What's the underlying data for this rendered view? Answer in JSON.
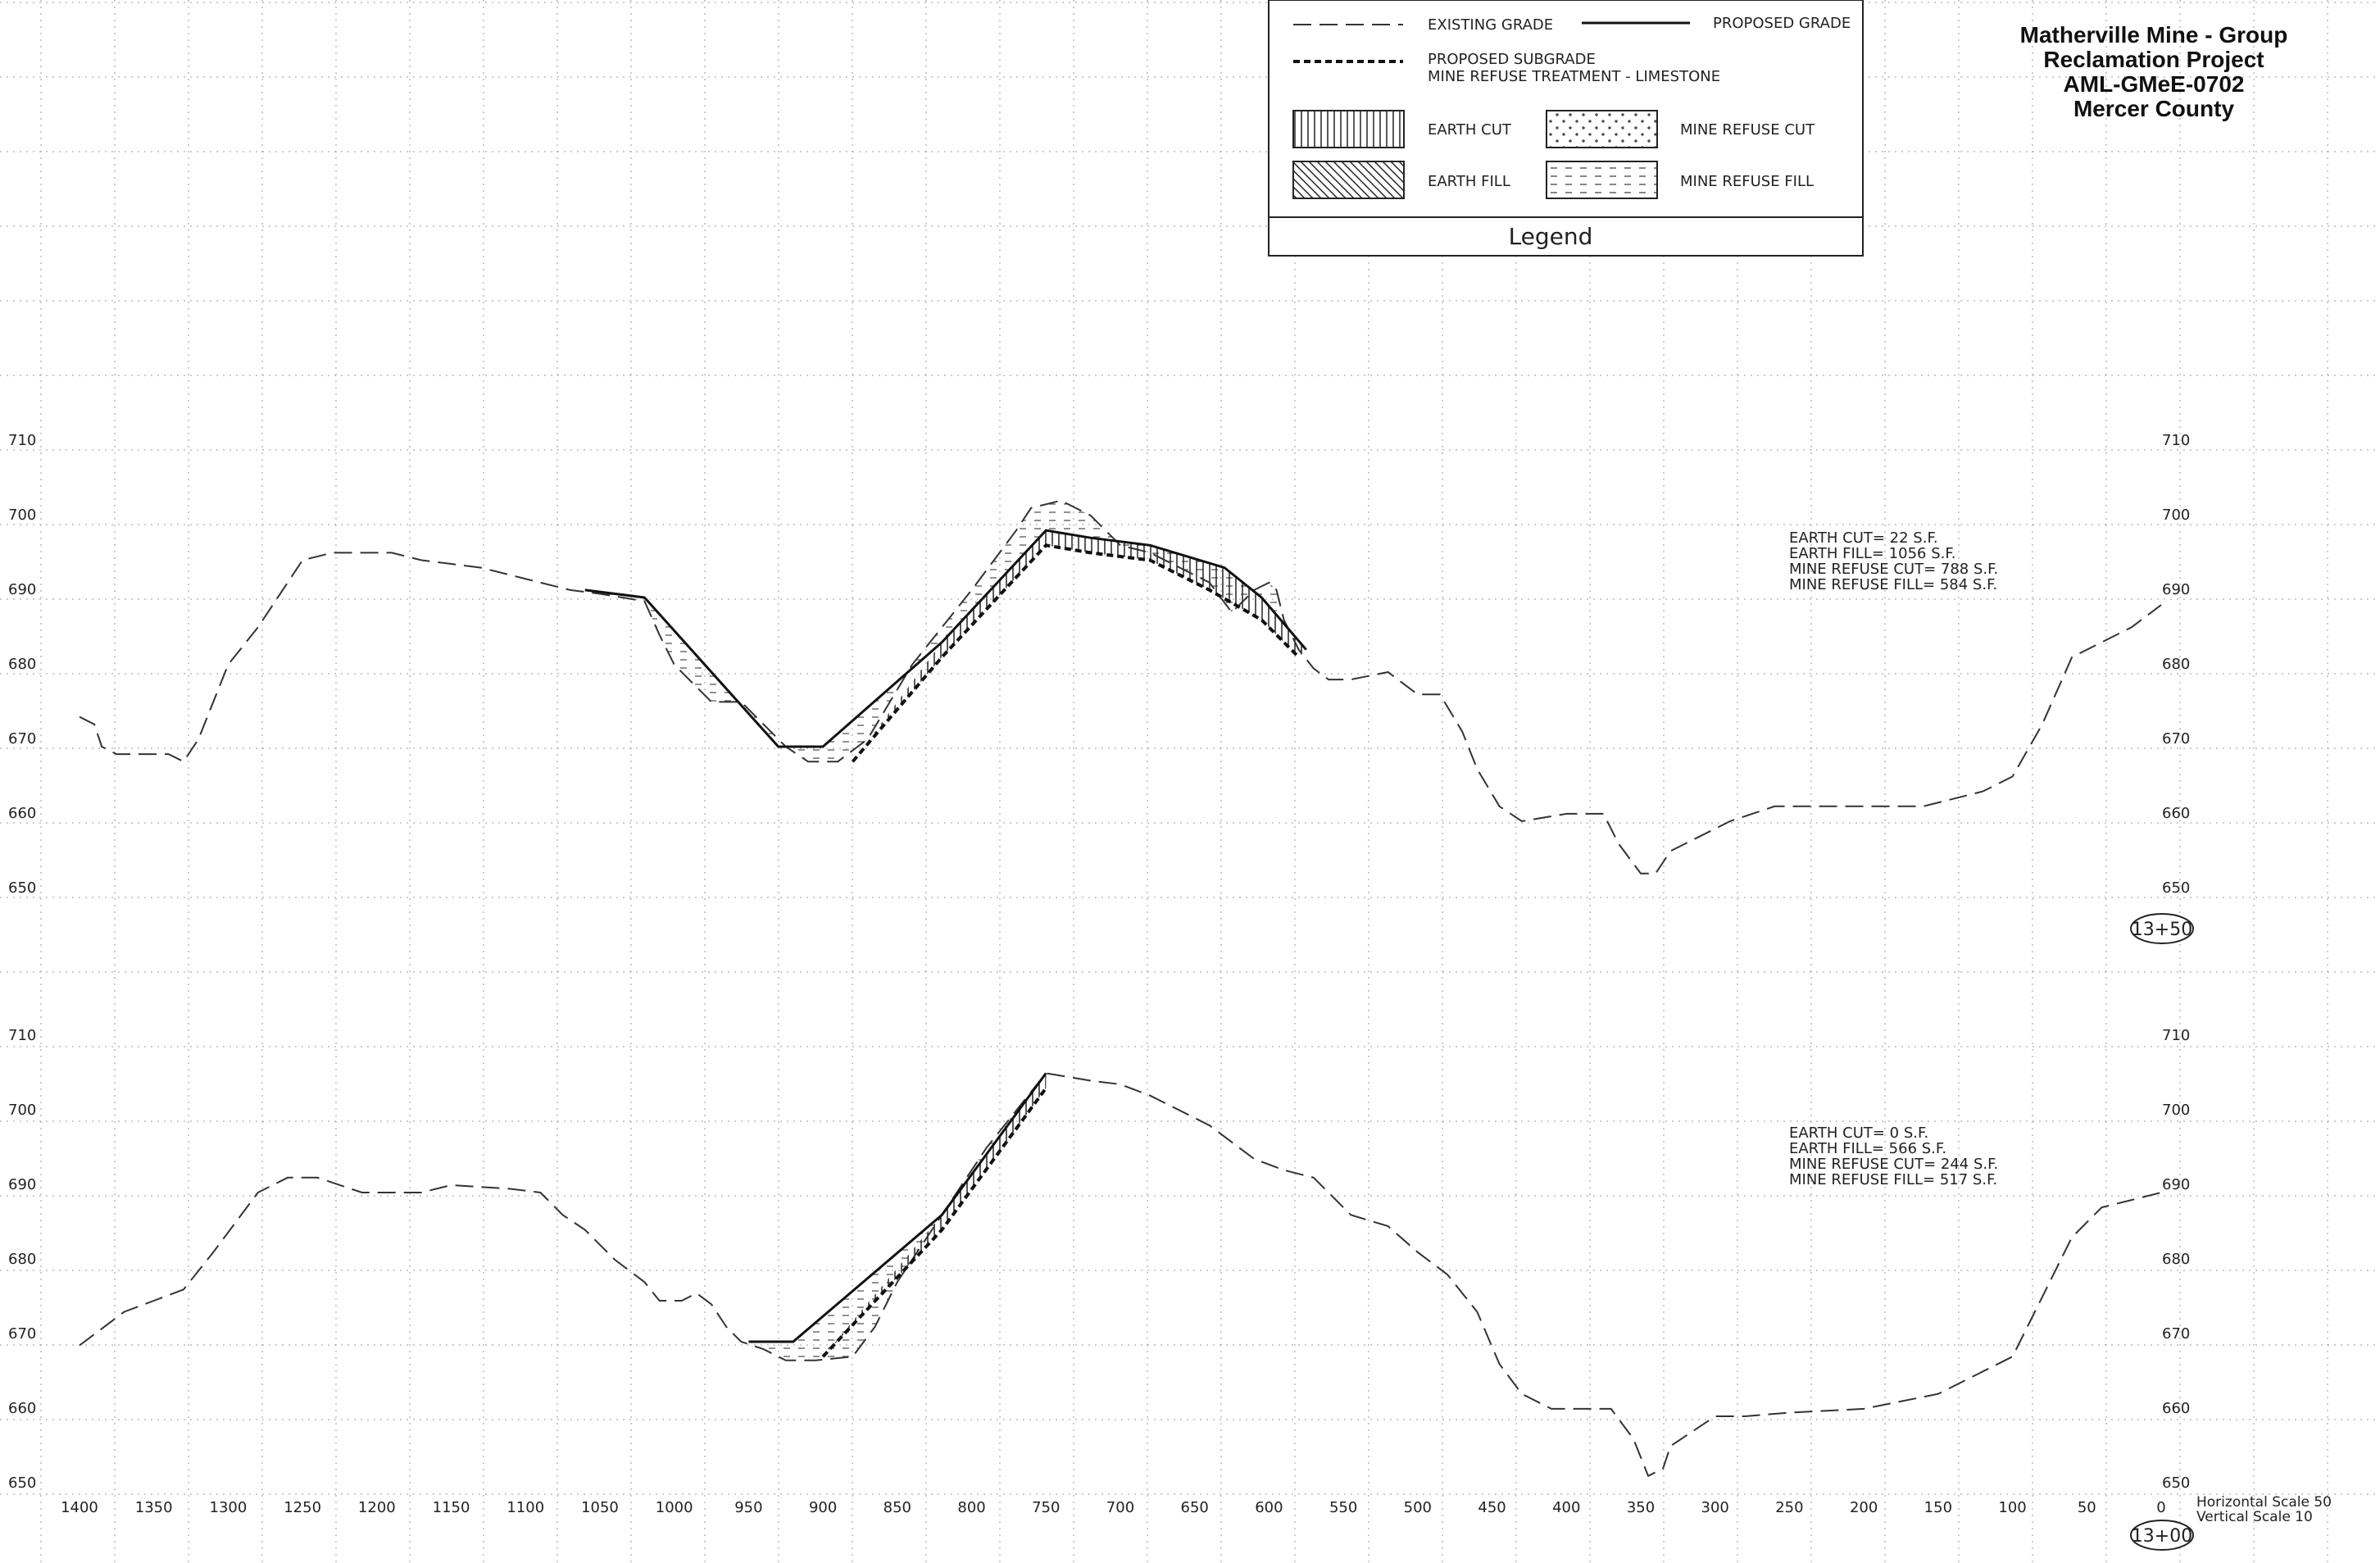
{
  "title": {
    "lines": [
      "Matherville Mine - Group",
      "Reclamation Project",
      "AML-GMeE-0702",
      "Mercer County"
    ]
  },
  "legend": {
    "heading": "Legend",
    "existing_grade": "EXISTING GRADE",
    "proposed_grade": "PROPOSED GRADE",
    "proposed_subgrade": "PROPOSED SUBGRADE",
    "mine_refuse_treatment": "MINE REFUSE TREATMENT - LIMESTONE",
    "earth_cut": "EARTH CUT",
    "mine_refuse_cut": "MINE REFUSE CUT",
    "earth_fill": "EARTH FILL",
    "mine_refuse_fill": "MINE REFUSE FILL"
  },
  "scale_note": {
    "horizontal": "Horizontal Scale 50",
    "vertical": "Vertical Scale 10"
  },
  "x_axis": {
    "ticks": [
      1400,
      1350,
      1300,
      1250,
      1200,
      1150,
      1100,
      1050,
      1000,
      950,
      900,
      850,
      800,
      750,
      700,
      650,
      600,
      550,
      500,
      450,
      400,
      350,
      300,
      250,
      200,
      150,
      100,
      50,
      0
    ],
    "range": [
      1400,
      0
    ]
  },
  "sections": [
    {
      "station": "13+50",
      "elevation_ticks": [
        710,
        700,
        690,
        680,
        670,
        660,
        650
      ],
      "quantities": [
        "EARTH CUT= 22 S.F.",
        "EARTH FILL= 1056 S.F.",
        "MINE REFUSE CUT= 788 S.F.",
        "MINE REFUSE FILL= 584 S.F."
      ],
      "existing_grade": [
        [
          1400,
          674
        ],
        [
          1390,
          673
        ],
        [
          1385,
          670
        ],
        [
          1375,
          669
        ],
        [
          1340,
          669
        ],
        [
          1330,
          668
        ],
        [
          1320,
          671
        ],
        [
          1300,
          681
        ],
        [
          1280,
          686
        ],
        [
          1250,
          695
        ],
        [
          1230,
          696
        ],
        [
          1190,
          696
        ],
        [
          1170,
          695
        ],
        [
          1150,
          694.5
        ],
        [
          1130,
          694
        ],
        [
          1110,
          693
        ],
        [
          1090,
          692
        ],
        [
          1070,
          691
        ],
        [
          1050,
          690.5
        ],
        [
          1020,
          689.5
        ],
        [
          1010,
          685
        ],
        [
          1000,
          681
        ],
        [
          985,
          678
        ],
        [
          975,
          676
        ],
        [
          955,
          676
        ],
        [
          940,
          673
        ],
        [
          925,
          670
        ],
        [
          910,
          668
        ],
        [
          890,
          668
        ],
        [
          870,
          671
        ],
        [
          855,
          676
        ],
        [
          840,
          681
        ],
        [
          820,
          686
        ],
        [
          800,
          691
        ],
        [
          785,
          695
        ],
        [
          770,
          699
        ],
        [
          760,
          702
        ],
        [
          740,
          703
        ],
        [
          720,
          701
        ],
        [
          700,
          697
        ],
        [
          680,
          696
        ],
        [
          660,
          694
        ],
        [
          640,
          692
        ],
        [
          625,
          688
        ],
        [
          610,
          691
        ],
        [
          600,
          692
        ],
        [
          595,
          691
        ],
        [
          590,
          687
        ],
        [
          580,
          683
        ],
        [
          570,
          680.5
        ],
        [
          560,
          679
        ],
        [
          545,
          679
        ],
        [
          520,
          680
        ],
        [
          500,
          677
        ],
        [
          485,
          677
        ],
        [
          470,
          672
        ],
        [
          460,
          667
        ],
        [
          445,
          662
        ],
        [
          430,
          660
        ],
        [
          400,
          661
        ],
        [
          375,
          661
        ],
        [
          365,
          657
        ],
        [
          350,
          653
        ],
        [
          340,
          653
        ],
        [
          330,
          656
        ],
        [
          310,
          658
        ],
        [
          290,
          660
        ],
        [
          260,
          662
        ],
        [
          200,
          662
        ],
        [
          160,
          662
        ],
        [
          120,
          664
        ],
        [
          100,
          666
        ],
        [
          80,
          673
        ],
        [
          60,
          682
        ],
        [
          40,
          684
        ],
        [
          20,
          686
        ],
        [
          0,
          689
        ]
      ],
      "proposed_grade": [
        [
          1060,
          691
        ],
        [
          1020,
          690
        ],
        [
          930,
          670
        ],
        [
          900,
          670
        ],
        [
          820,
          684
        ],
        [
          750,
          699
        ],
        [
          720,
          698
        ],
        [
          680,
          697
        ],
        [
          630,
          694
        ],
        [
          605,
          690
        ],
        [
          575,
          683
        ]
      ],
      "proposed_subgrade": [
        [
          880,
          668
        ],
        [
          820,
          682
        ],
        [
          750,
          697
        ],
        [
          720,
          696
        ],
        [
          680,
          695
        ],
        [
          640,
          691
        ],
        [
          605,
          687
        ],
        [
          580,
          682
        ]
      ]
    },
    {
      "station": "13+00",
      "elevation_ticks": [
        710,
        700,
        690,
        680,
        670,
        660,
        650
      ],
      "quantities": [
        "EARTH CUT= 0 S.F.",
        "EARTH FILL= 566 S.F.",
        "MINE REFUSE CUT= 244 S.F.",
        "MINE REFUSE FILL= 517 S.F."
      ],
      "existing_grade": [
        [
          1400,
          669.5
        ],
        [
          1390,
          671
        ],
        [
          1370,
          674
        ],
        [
          1350,
          675.5
        ],
        [
          1330,
          677
        ],
        [
          1310,
          682
        ],
        [
          1295,
          686
        ],
        [
          1280,
          690
        ],
        [
          1260,
          692
        ],
        [
          1240,
          692
        ],
        [
          1210,
          690
        ],
        [
          1170,
          690
        ],
        [
          1150,
          691
        ],
        [
          1110,
          690.5
        ],
        [
          1090,
          690
        ],
        [
          1075,
          687
        ],
        [
          1060,
          685
        ],
        [
          1040,
          681
        ],
        [
          1020,
          678
        ],
        [
          1010,
          675.5
        ],
        [
          995,
          675.5
        ],
        [
          985,
          676.5
        ],
        [
          975,
          675
        ],
        [
          965,
          672
        ],
        [
          955,
          670
        ],
        [
          940,
          669
        ],
        [
          925,
          667.5
        ],
        [
          905,
          667.5
        ],
        [
          880,
          668
        ],
        [
          865,
          672
        ],
        [
          850,
          678
        ],
        [
          830,
          684
        ],
        [
          810,
          690
        ],
        [
          790,
          696
        ],
        [
          770,
          701
        ],
        [
          750,
          706
        ],
        [
          720,
          705
        ],
        [
          700,
          704.5
        ],
        [
          680,
          703
        ],
        [
          660,
          701
        ],
        [
          640,
          699
        ],
        [
          620,
          696
        ],
        [
          610,
          694.5
        ],
        [
          590,
          693
        ],
        [
          570,
          692
        ],
        [
          560,
          690
        ],
        [
          545,
          687
        ],
        [
          520,
          685.5
        ],
        [
          500,
          682
        ],
        [
          480,
          679
        ],
        [
          460,
          674
        ],
        [
          445,
          667
        ],
        [
          430,
          663
        ],
        [
          410,
          661
        ],
        [
          390,
          661
        ],
        [
          370,
          661
        ],
        [
          355,
          657
        ],
        [
          345,
          652
        ],
        [
          335,
          653
        ],
        [
          330,
          656
        ],
        [
          315,
          658
        ],
        [
          300,
          660
        ],
        [
          280,
          660
        ],
        [
          250,
          660.5
        ],
        [
          200,
          661
        ],
        [
          150,
          663
        ],
        [
          120,
          666
        ],
        [
          100,
          668
        ],
        [
          80,
          676
        ],
        [
          60,
          684
        ],
        [
          40,
          688
        ],
        [
          20,
          689
        ],
        [
          0,
          690
        ]
      ],
      "proposed_grade": [
        [
          950,
          670
        ],
        [
          920,
          670
        ],
        [
          820,
          687
        ],
        [
          750,
          706
        ]
      ],
      "proposed_subgrade": [
        [
          900,
          668
        ],
        [
          820,
          685
        ],
        [
          750,
          704
        ]
      ]
    }
  ]
}
